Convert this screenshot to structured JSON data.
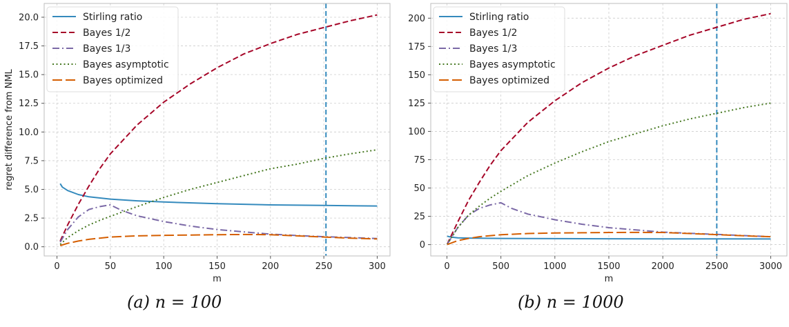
{
  "chart_data": [
    {
      "type": "line",
      "caption": "(a) n = 100",
      "xlabel": "m",
      "ylabel": "regret difference from NML",
      "xlim": [
        -12,
        312
      ],
      "ylim": [
        -0.8,
        21.2
      ],
      "xticks": [
        0,
        50,
        100,
        150,
        200,
        250,
        300
      ],
      "yticks": [
        0.0,
        2.5,
        5.0,
        7.5,
        10.0,
        12.5,
        15.0,
        17.5,
        20.0
      ],
      "ytick_labels": [
        "0.0",
        "2.5",
        "5.0",
        "7.5",
        "10.0",
        "12.5",
        "15.0",
        "17.5",
        "20.0"
      ],
      "grid": true,
      "legend_position": "top-left",
      "vline": 252,
      "vline_color": "#348ABD",
      "series": [
        {
          "name": "Stirling ratio",
          "color": "#348ABD",
          "dash": "solid",
          "x": [
            3,
            5,
            10,
            20,
            30,
            50,
            75,
            100,
            150,
            200,
            250,
            300
          ],
          "y": [
            5.5,
            5.2,
            4.9,
            4.55,
            4.35,
            4.15,
            4.0,
            3.9,
            3.75,
            3.65,
            3.6,
            3.55
          ]
        },
        {
          "name": "Bayes 1/2",
          "color": "#A60628",
          "dash": "dashed",
          "x": [
            3,
            10,
            20,
            30,
            40,
            50,
            75,
            100,
            125,
            150,
            175,
            200,
            225,
            250,
            275,
            300
          ],
          "y": [
            0.5,
            1.9,
            3.7,
            5.3,
            6.8,
            8.1,
            10.6,
            12.6,
            14.2,
            15.6,
            16.8,
            17.7,
            18.5,
            19.1,
            19.7,
            20.2
          ]
        },
        {
          "name": "Bayes 1/3",
          "color": "#7A68A6",
          "dash": "dashdot",
          "x": [
            3,
            10,
            20,
            30,
            40,
            50,
            60,
            75,
            100,
            125,
            150,
            175,
            200,
            225,
            250,
            275,
            300
          ],
          "y": [
            0.4,
            1.5,
            2.6,
            3.25,
            3.5,
            3.65,
            3.2,
            2.7,
            2.2,
            1.8,
            1.5,
            1.3,
            1.1,
            0.98,
            0.88,
            0.8,
            0.72
          ]
        },
        {
          "name": "Bayes asymptotic",
          "color": "#467821",
          "dash": "dotted",
          "x": [
            3,
            10,
            20,
            30,
            40,
            50,
            75,
            100,
            125,
            150,
            175,
            200,
            225,
            250,
            275,
            300
          ],
          "y": [
            0.2,
            0.8,
            1.4,
            1.9,
            2.3,
            2.65,
            3.5,
            4.3,
            5.0,
            5.6,
            6.2,
            6.8,
            7.2,
            7.7,
            8.1,
            8.45
          ]
        },
        {
          "name": "Bayes optimized",
          "color": "#D55E00",
          "dash": "longdash",
          "x": [
            3,
            10,
            20,
            30,
            50,
            75,
            100,
            125,
            150,
            175,
            200,
            225,
            250,
            275,
            300
          ],
          "y": [
            0.1,
            0.3,
            0.5,
            0.65,
            0.85,
            0.95,
            1.0,
            1.02,
            1.05,
            1.07,
            1.05,
            0.95,
            0.85,
            0.75,
            0.68
          ]
        }
      ]
    },
    {
      "type": "line",
      "caption": "(b) n = 1000",
      "xlabel": "m",
      "ylabel": "",
      "xlim": [
        -150,
        3150
      ],
      "ylim": [
        -10,
        213
      ],
      "xticks": [
        0,
        500,
        1000,
        1500,
        2000,
        2500,
        3000
      ],
      "yticks": [
        0,
        25,
        50,
        75,
        100,
        125,
        150,
        175,
        200
      ],
      "ytick_labels": [
        "0",
        "25",
        "50",
        "75",
        "100",
        "125",
        "150",
        "175",
        "200"
      ],
      "grid": true,
      "legend_position": "top-left",
      "vline": 2500,
      "vline_color": "#348ABD",
      "series": [
        {
          "name": "Stirling ratio",
          "color": "#348ABD",
          "dash": "solid",
          "x": [
            3,
            20,
            50,
            100,
            200,
            500,
            1000,
            1500,
            2000,
            2500,
            3000
          ],
          "y": [
            7.5,
            7.0,
            6.5,
            6.0,
            5.8,
            5.5,
            5.3,
            5.2,
            5.1,
            5.05,
            5.0
          ]
        },
        {
          "name": "Bayes 1/2",
          "color": "#A60628",
          "dash": "dashed",
          "x": [
            3,
            100,
            200,
            300,
            400,
            500,
            750,
            1000,
            1250,
            1500,
            1750,
            2000,
            2250,
            2500,
            2750,
            3000
          ],
          "y": [
            0.5,
            20,
            39,
            55,
            70,
            83,
            108,
            127,
            143,
            156,
            167,
            176,
            185,
            192,
            199,
            204
          ]
        },
        {
          "name": "Bayes 1/3",
          "color": "#7A68A6",
          "dash": "dashdot",
          "x": [
            3,
            100,
            200,
            300,
            400,
            500,
            600,
            750,
            1000,
            1250,
            1500,
            1750,
            2000,
            2250,
            2500,
            2750,
            3000
          ],
          "y": [
            0.4,
            15,
            26,
            32,
            35,
            37,
            32,
            27,
            22,
            18,
            15,
            13,
            11,
            10,
            9,
            8,
            7
          ]
        },
        {
          "name": "Bayes asymptotic",
          "color": "#467821",
          "dash": "dotted",
          "x": [
            3,
            100,
            200,
            300,
            400,
            500,
            750,
            1000,
            1250,
            1500,
            1750,
            2000,
            2250,
            2500,
            2750,
            3000
          ],
          "y": [
            0.2,
            15,
            26,
            34,
            41,
            47,
            61,
            72,
            82,
            91,
            98,
            105,
            111,
            116,
            121,
            125
          ]
        },
        {
          "name": "Bayes optimized",
          "color": "#D55E00",
          "dash": "longdash",
          "x": [
            3,
            100,
            200,
            300,
            500,
            750,
            1000,
            1250,
            1500,
            1750,
            2000,
            2250,
            2500,
            2750,
            3000
          ],
          "y": [
            0.1,
            3.5,
            5.5,
            7,
            8.7,
            9.8,
            10.3,
            10.5,
            10.7,
            10.8,
            10.7,
            9.8,
            8.8,
            7.8,
            7.0
          ]
        }
      ]
    }
  ]
}
